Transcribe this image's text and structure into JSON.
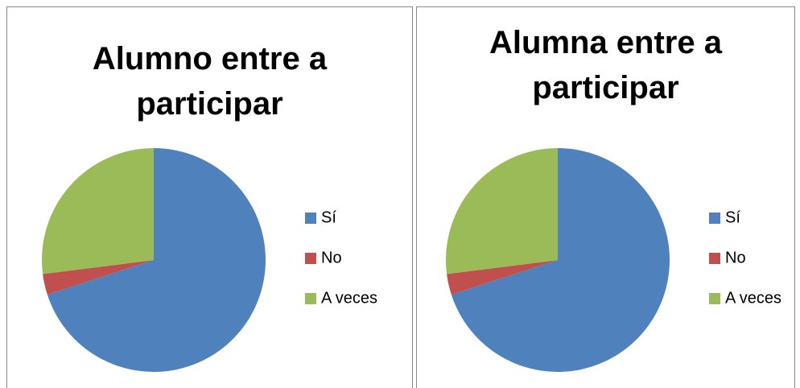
{
  "chart_data": [
    {
      "type": "pie",
      "title": "Alumno entre a participar",
      "categories": [
        "Sí",
        "No",
        "A veces"
      ],
      "values": [
        70,
        3,
        27
      ],
      "colors": [
        "#4f81bd",
        "#c0504d",
        "#9bbb59"
      ],
      "legend": "right"
    },
    {
      "type": "pie",
      "title": "Alumna entre a participar",
      "categories": [
        "Sí",
        "No",
        "A veces"
      ],
      "values": [
        70,
        3,
        27
      ],
      "colors": [
        "#4f81bd",
        "#c0504d",
        "#9bbb59"
      ],
      "legend": "right"
    }
  ]
}
